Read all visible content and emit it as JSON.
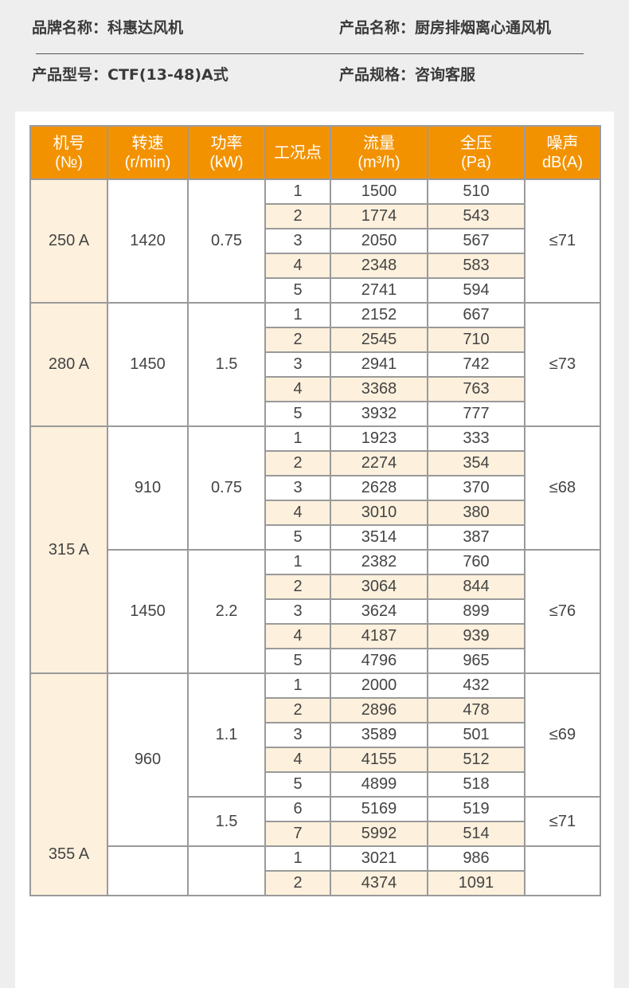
{
  "info": {
    "brand_label": "品牌名称：",
    "brand": "科惠达风机",
    "name_label": "产品名称：",
    "name": "厨房排烟离心通风机",
    "model_label": "产品型号：",
    "model": "CTF(13-48)A式",
    "spec_label": "产品规格：",
    "spec": "咨询客服"
  },
  "colors": {
    "header": "#f39200",
    "shade": "#fdf0dc",
    "border": "#9a9a9a"
  },
  "table": {
    "headers": [
      {
        "line1": "机号",
        "line2": "(№)"
      },
      {
        "line1": "转速",
        "line2": "(r/min)"
      },
      {
        "line1": "功率",
        "line2": "(kW)"
      },
      {
        "line1": "工况点",
        "line2": ""
      },
      {
        "line1": "流量",
        "line2": "(m³/h)"
      },
      {
        "line1": "全压",
        "line2": "(Pa)"
      },
      {
        "line1": "噪声",
        "line2": "dB(A)"
      }
    ],
    "models": [
      {
        "no": "250 A",
        "speeds": [
          {
            "speed": "1420",
            "powers": [
              {
                "power": "0.75",
                "noise": "≤71",
                "points": [
                  [
                    "1",
                    "1500",
                    "510"
                  ],
                  [
                    "2",
                    "1774",
                    "543"
                  ],
                  [
                    "3",
                    "2050",
                    "567"
                  ],
                  [
                    "4",
                    "2348",
                    "583"
                  ],
                  [
                    "5",
                    "2741",
                    "594"
                  ]
                ]
              }
            ]
          }
        ]
      },
      {
        "no": "280 A",
        "speeds": [
          {
            "speed": "1450",
            "powers": [
              {
                "power": "1.5",
                "noise": "≤73",
                "points": [
                  [
                    "1",
                    "2152",
                    "667"
                  ],
                  [
                    "2",
                    "2545",
                    "710"
                  ],
                  [
                    "3",
                    "2941",
                    "742"
                  ],
                  [
                    "4",
                    "3368",
                    "763"
                  ],
                  [
                    "5",
                    "3932",
                    "777"
                  ]
                ]
              }
            ]
          }
        ]
      },
      {
        "no": "315 A",
        "speeds": [
          {
            "speed": "910",
            "powers": [
              {
                "power": "0.75",
                "noise": "≤68",
                "points": [
                  [
                    "1",
                    "1923",
                    "333"
                  ],
                  [
                    "2",
                    "2274",
                    "354"
                  ],
                  [
                    "3",
                    "2628",
                    "370"
                  ],
                  [
                    "4",
                    "3010",
                    "380"
                  ],
                  [
                    "5",
                    "3514",
                    "387"
                  ]
                ]
              }
            ]
          },
          {
            "speed": "1450",
            "powers": [
              {
                "power": "2.2",
                "noise": "≤76",
                "points": [
                  [
                    "1",
                    "2382",
                    "760"
                  ],
                  [
                    "2",
                    "3064",
                    "844"
                  ],
                  [
                    "3",
                    "3624",
                    "899"
                  ],
                  [
                    "4",
                    "4187",
                    "939"
                  ],
                  [
                    "5",
                    "4796",
                    "965"
                  ]
                ]
              }
            ]
          }
        ]
      },
      {
        "no": "355 A",
        "speeds": [
          {
            "speed": "960",
            "powers": [
              {
                "power": "1.1",
                "noise": "≤69",
                "points": [
                  [
                    "1",
                    "2000",
                    "432"
                  ],
                  [
                    "2",
                    "2896",
                    "478"
                  ],
                  [
                    "3",
                    "3589",
                    "501"
                  ],
                  [
                    "4",
                    "4155",
                    "512"
                  ],
                  [
                    "5",
                    "4899",
                    "518"
                  ]
                ]
              },
              {
                "power": "1.5",
                "noise": "≤71",
                "points": [
                  [
                    "6",
                    "5169",
                    "519"
                  ],
                  [
                    "7",
                    "5992",
                    "514"
                  ]
                ]
              }
            ]
          },
          {
            "speed": "",
            "powers": [
              {
                "power": "",
                "noise": "",
                "points": [
                  [
                    "1",
                    "3021",
                    "986"
                  ],
                  [
                    "2",
                    "4374",
                    "1091"
                  ]
                ]
              }
            ]
          }
        ]
      }
    ]
  }
}
